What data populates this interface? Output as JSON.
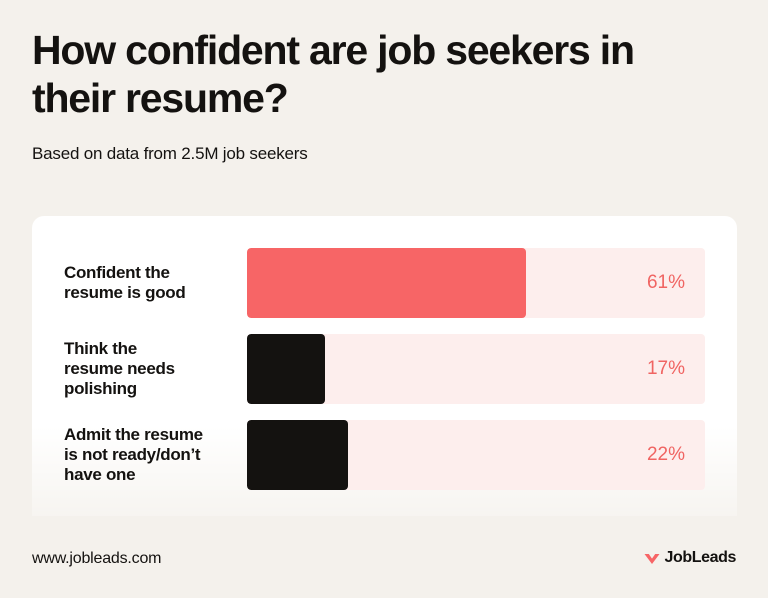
{
  "title": "How confident are job seekers in their resume?",
  "subtitle": "Based on data from 2.5M job seekers",
  "footer": {
    "url": "www.jobleads.com",
    "brand": "JobLeads"
  },
  "colors": {
    "accent": "#f76566",
    "dark": "#141210",
    "track": "#fdeeed",
    "value_text": "#f06462",
    "background": "#f4f1ec"
  },
  "chart_data": {
    "type": "bar",
    "orientation": "horizontal",
    "categories": [
      "Confident the\nresume is good",
      "Think the\nresume needs\npolishing",
      "Admit the resume\nis not ready/don’t\nhave one"
    ],
    "values": [
      61,
      17,
      22
    ],
    "value_labels": [
      "61%",
      "17%",
      "22%"
    ],
    "unit": "%",
    "xlim": [
      0,
      100
    ],
    "bar_colors": [
      "#f76566",
      "#141210",
      "#141210"
    ],
    "title": "How confident are job seekers in their resume?",
    "subtitle": "Based on data from 2.5M job seekers",
    "grid": false,
    "legend": "none"
  }
}
